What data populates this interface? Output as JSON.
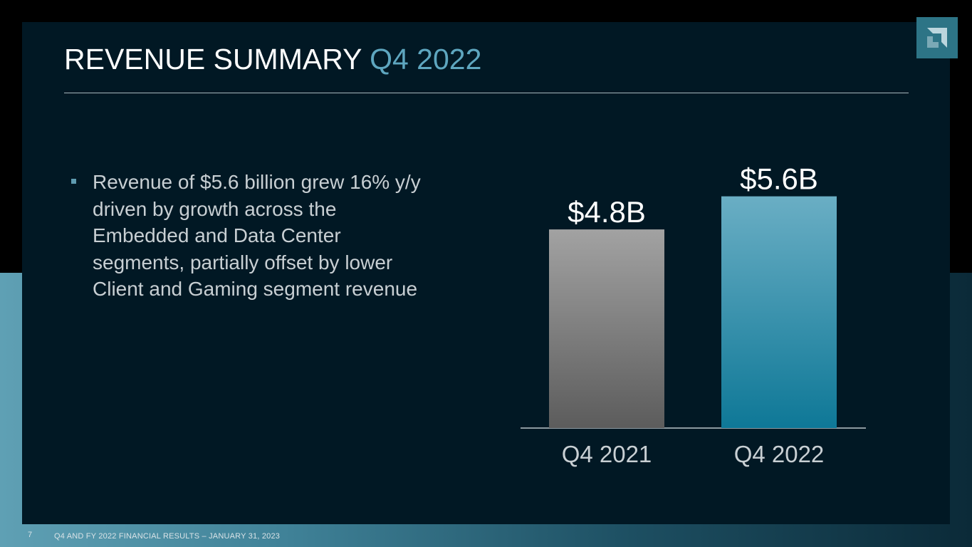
{
  "title": {
    "main": "REVENUE SUMMARY",
    "accent": "Q4 2022"
  },
  "bullet": "Revenue of $5.6 billion grew 16% y/y driven by growth across the Embedded and Data Center segments, partially offset by lower Client and Gaming segment revenue",
  "chart_data": {
    "type": "bar",
    "title": "",
    "xlabel": "",
    "ylabel": "",
    "categories": [
      "Q4 2021",
      "Q4 2022"
    ],
    "values": [
      4.8,
      5.6
    ],
    "value_labels": [
      "$4.8B",
      "$5.6B"
    ],
    "units": "billion USD",
    "ylim": [
      0,
      6.0
    ],
    "grid": false,
    "legend": "none",
    "colors": [
      "#8a8a8a",
      "#3f95b0"
    ]
  },
  "footer": {
    "page": "7",
    "text": "Q4 AND FY 2022 FINANCIAL RESULTS – JANUARY 31, 2023"
  },
  "colors": {
    "panel": "#011824",
    "accent": "#5ea6bf",
    "logo": "#2d7486"
  }
}
